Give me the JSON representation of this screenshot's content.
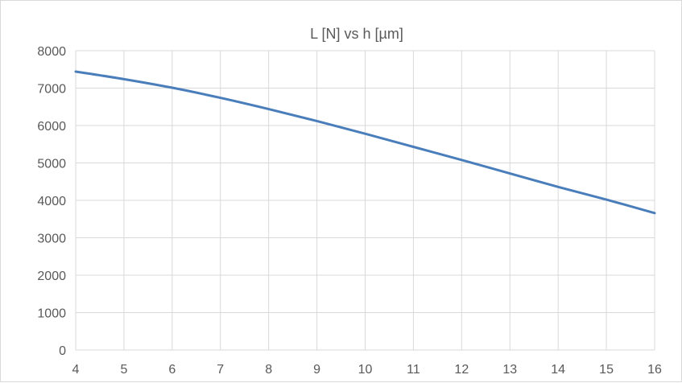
{
  "chart_data": {
    "type": "line",
    "title": "L [N] vs h [µm]",
    "xlabel": "",
    "ylabel": "",
    "xlim": [
      4,
      16
    ],
    "ylim": [
      0,
      8000
    ],
    "x_ticks": [
      4,
      5,
      6,
      7,
      8,
      9,
      10,
      11,
      12,
      13,
      14,
      15,
      16
    ],
    "y_ticks": [
      0,
      1000,
      2000,
      3000,
      4000,
      5000,
      6000,
      7000,
      8000
    ],
    "grid": true,
    "legend": "none",
    "series": [
      {
        "color": "#4a7ebb",
        "x": [
          4,
          5,
          6,
          7,
          8,
          9,
          10,
          11,
          12,
          13,
          14,
          15,
          16
        ],
        "y": [
          7440,
          7240,
          7010,
          6740,
          6440,
          6120,
          5780,
          5430,
          5080,
          4720,
          4360,
          4020,
          3660
        ]
      }
    ]
  }
}
